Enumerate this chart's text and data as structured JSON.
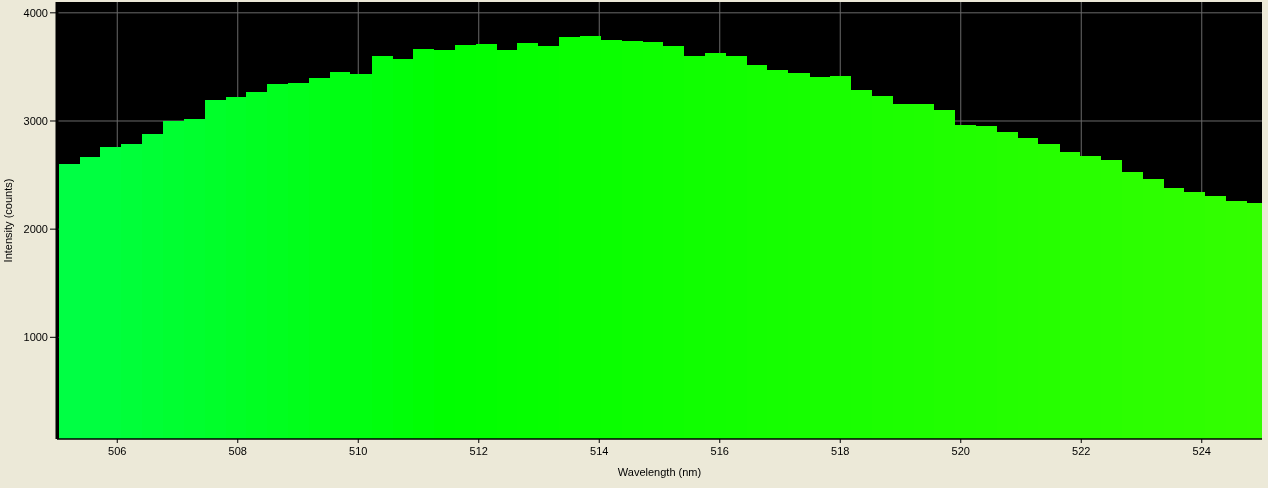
{
  "chart_data": {
    "type": "histogram",
    "xlabel": "Wavelength (nm)",
    "ylabel": "Intensity (counts)",
    "bins": [
      505.03,
      505.38,
      505.72,
      506.07,
      506.41,
      506.76,
      507.11,
      507.45,
      507.8,
      508.14,
      508.49,
      508.84,
      509.18,
      509.53,
      509.87,
      510.22,
      510.57,
      510.91,
      511.26,
      511.6,
      511.95,
      512.3,
      512.64,
      512.99,
      513.33,
      513.68,
      514.03,
      514.37,
      514.72,
      515.06,
      515.41,
      515.76,
      516.1,
      516.45,
      516.79,
      517.14,
      517.49,
      517.83,
      518.18,
      518.52,
      518.87,
      519.22,
      519.56,
      519.91,
      520.25,
      520.6,
      520.95,
      521.29,
      521.64,
      521.98,
      522.33,
      522.68,
      523.02,
      523.37,
      523.71,
      524.06,
      524.41,
      524.75,
      525.0
    ],
    "values": [
      2600,
      2670,
      2760,
      2790,
      2880,
      3000,
      3020,
      3190,
      3220,
      3270,
      3340,
      3350,
      3400,
      3450,
      3430,
      3600,
      3570,
      3670,
      3660,
      3700,
      3710,
      3660,
      3720,
      3690,
      3780,
      3790,
      3750,
      3740,
      3730,
      3690,
      3600,
      3630,
      3600,
      3520,
      3470,
      3440,
      3410,
      3420,
      3290,
      3230,
      3160,
      3160,
      3100,
      2960,
      2950,
      2900,
      2840,
      2790,
      2710,
      2680,
      2640,
      2530,
      2460,
      2380,
      2340,
      2310,
      2260,
      2240
    ],
    "colors": [
      "#00ff44",
      "#00ff40",
      "#00ff3d",
      "#00ff39",
      "#00ff35",
      "#00ff31",
      "#00ff2e",
      "#00ff2a",
      "#00ff26",
      "#00ff22",
      "#00ff1f",
      "#00ff1b",
      "#00ff17",
      "#00ff13",
      "#00ff10",
      "#00ff0c",
      "#00ff08",
      "#00ff04",
      "#00ff00",
      "#01ff00",
      "#02ff00",
      "#04ff00",
      "#05ff00",
      "#06ff00",
      "#08ff00",
      "#09ff00",
      "#0aff00",
      "#0cff00",
      "#0dff00",
      "#0eff00",
      "#10ff00",
      "#11ff00",
      "#12ff00",
      "#14ff00",
      "#15ff00",
      "#16ff00",
      "#18ff00",
      "#19ff00",
      "#1aff00",
      "#1cff00",
      "#1dff00",
      "#1eff00",
      "#20ff00",
      "#21ff00",
      "#22ff00",
      "#24ff00",
      "#25ff00",
      "#26ff00",
      "#28ff00",
      "#29ff00",
      "#2aff00",
      "#2cff00",
      "#2dff00",
      "#2eff00",
      "#2fff00",
      "#31ff00",
      "#32ff00",
      "#33ff00"
    ],
    "xlim": [
      505,
      525
    ],
    "ylim": [
      60,
      4100
    ],
    "xticks": [
      506,
      508,
      510,
      512,
      514,
      516,
      518,
      520,
      522,
      524
    ],
    "yticks": [
      1000,
      2000,
      3000,
      4000
    ],
    "grid": true
  }
}
